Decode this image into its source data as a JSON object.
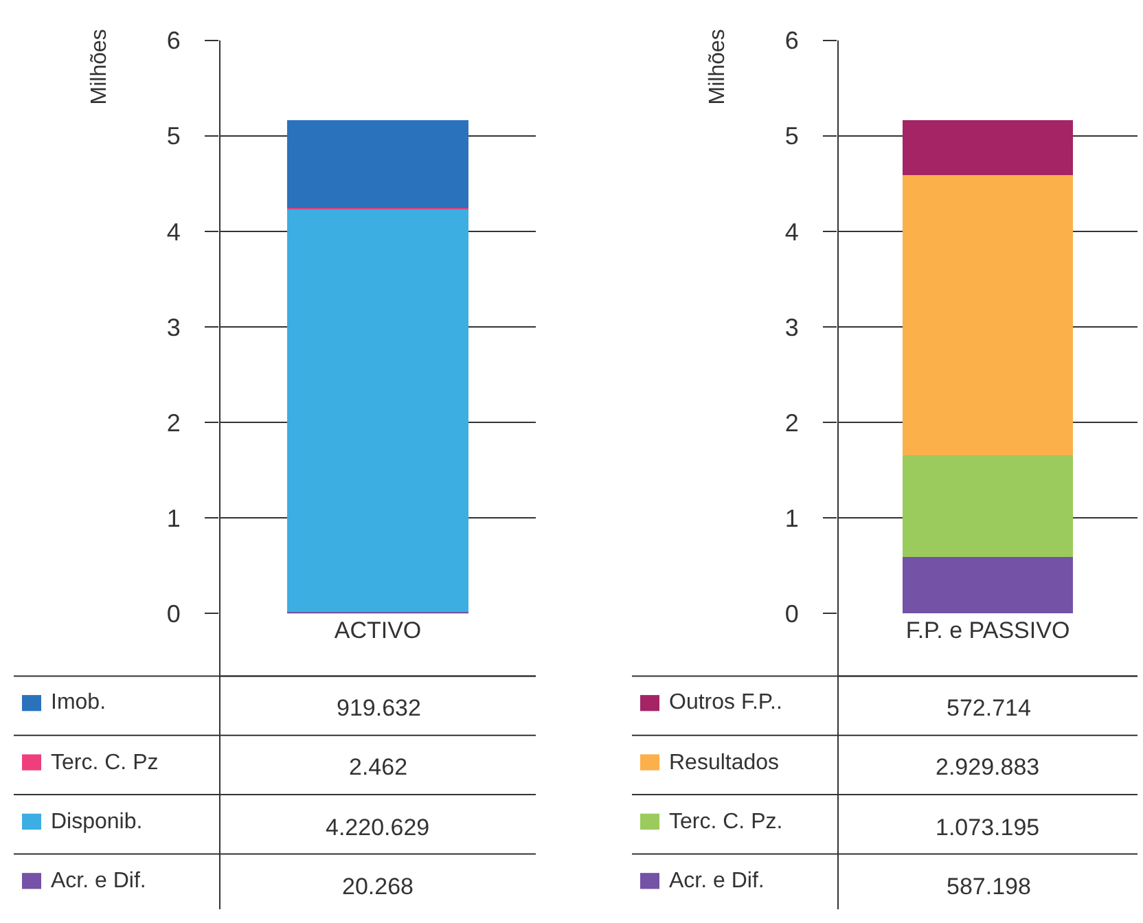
{
  "chart_data": [
    {
      "type": "bar",
      "stacked": true,
      "ylabel": "Milhões",
      "categories": [
        "ACTIVO"
      ],
      "ylim": [
        0,
        6
      ],
      "yticks": [
        0,
        1,
        2,
        3,
        4,
        5,
        6
      ],
      "grid": "y",
      "legend": "bottom",
      "annotations": [
        "20.268",
        "4.220.629",
        "2.462",
        "919.632"
      ],
      "series": [
        {
          "name": "Acr. e Dif.",
          "color": "#7452a6",
          "values": [
            0.02
          ]
        },
        {
          "name": "Disponib.",
          "color": "#3caee2",
          "values": [
            4.22
          ]
        },
        {
          "name": "Terc. C. Pz",
          "color": "#ee3f7c",
          "values": [
            0.002
          ]
        },
        {
          "name": "Imob.",
          "color": "#2a72bc",
          "values": [
            0.92
          ]
        }
      ]
    },
    {
      "type": "bar",
      "stacked": true,
      "ylabel": "Milhões",
      "categories": [
        "F.P. e PASSIVO"
      ],
      "ylim": [
        0,
        6
      ],
      "yticks": [
        0,
        1,
        2,
        3,
        4,
        5,
        6
      ],
      "grid": "y",
      "legend": "bottom",
      "annotations": [
        "587.198",
        "1.073.195",
        "2.929.883",
        "572.714"
      ],
      "series": [
        {
          "name": "Acr. e Dif.",
          "color": "#7452a6",
          "values": [
            0.59
          ]
        },
        {
          "name": "Terc. C. Pz.",
          "color": "#9acb5c",
          "values": [
            1.07
          ]
        },
        {
          "name": "Resultados",
          "color": "#fbb04a",
          "values": [
            2.93
          ]
        },
        {
          "name": "Outros F.P..",
          "color": "#a42465",
          "values": [
            0.57
          ]
        }
      ]
    }
  ]
}
